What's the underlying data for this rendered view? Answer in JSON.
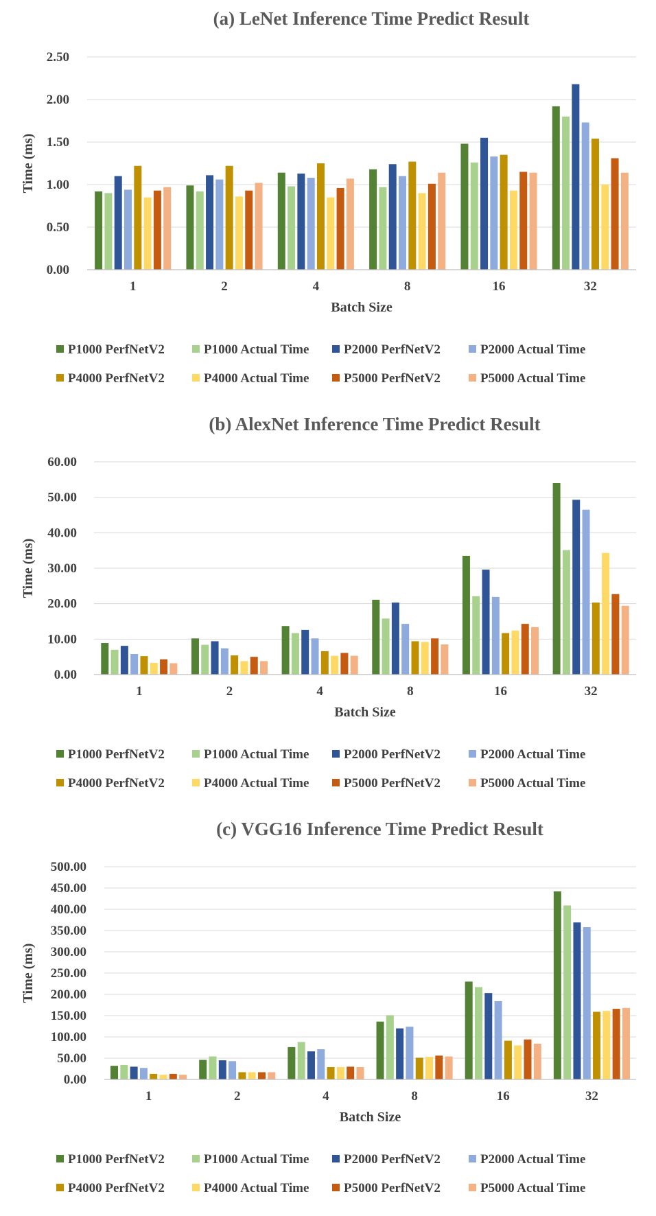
{
  "chart_data": [
    {
      "type": "bar",
      "title": "(a) LeNet Inference Time Predict Result",
      "xlabel": "Batch Size",
      "ylabel": "Time (ms)",
      "ylim": [
        0,
        2.5
      ],
      "yticks": [
        "0.00",
        "0.50",
        "1.00",
        "1.50",
        "2.00",
        "2.50"
      ],
      "ytick_values": [
        0,
        0.5,
        1.0,
        1.5,
        2.0,
        2.5
      ],
      "categories": [
        "1",
        "2",
        "4",
        "8",
        "16",
        "32"
      ],
      "series": [
        {
          "name": "P1000 PerfNetV2",
          "color": "#548235",
          "values": [
            0.92,
            0.99,
            1.14,
            1.18,
            1.48,
            1.92
          ]
        },
        {
          "name": "P1000 Actual Time",
          "color": "#a9d18e",
          "values": [
            0.9,
            0.92,
            0.98,
            0.97,
            1.26,
            1.8
          ]
        },
        {
          "name": "P2000 PerfNetV2",
          "color": "#2f5597",
          "values": [
            1.1,
            1.11,
            1.13,
            1.24,
            1.55,
            2.18
          ]
        },
        {
          "name": "P2000 Actual Time",
          "color": "#8faadc",
          "values": [
            0.94,
            1.06,
            1.08,
            1.1,
            1.33,
            1.73
          ]
        },
        {
          "name": "P4000 PerfNetV2",
          "color": "#bf9000",
          "values": [
            1.22,
            1.22,
            1.25,
            1.27,
            1.35,
            1.54
          ]
        },
        {
          "name": "P4000 Actual Time",
          "color": "#ffd966",
          "values": [
            0.85,
            0.86,
            0.85,
            0.9,
            0.93,
            1.0
          ]
        },
        {
          "name": "P5000 PerfNetV2",
          "color": "#c55a11",
          "values": [
            0.93,
            0.93,
            0.96,
            1.01,
            1.15,
            1.31
          ]
        },
        {
          "name": "P5000 Actual Time",
          "color": "#f4b183",
          "values": [
            0.97,
            1.02,
            1.07,
            1.14,
            1.14,
            1.14
          ]
        }
      ]
    },
    {
      "type": "bar",
      "title": "(b) AlexNet Inference Time Predict Result",
      "xlabel": "Batch Size",
      "ylabel": "Time (ms)",
      "ylim": [
        0,
        60
      ],
      "yticks": [
        "0.00",
        "10.00",
        "20.00",
        "30.00",
        "40.00",
        "50.00",
        "60.00"
      ],
      "ytick_values": [
        0,
        10,
        20,
        30,
        40,
        50,
        60
      ],
      "categories": [
        "1",
        "2",
        "4",
        "8",
        "16",
        "32"
      ],
      "series": [
        {
          "name": "P1000 PerfNetV2",
          "color": "#548235",
          "values": [
            8.9,
            10.2,
            13.7,
            21.1,
            33.5,
            54.0
          ]
        },
        {
          "name": "P1000 Actual Time",
          "color": "#a9d18e",
          "values": [
            7.0,
            8.4,
            11.7,
            15.8,
            22.1,
            35.1
          ]
        },
        {
          "name": "P2000 PerfNetV2",
          "color": "#2f5597",
          "values": [
            8.1,
            9.4,
            12.6,
            20.3,
            29.6,
            49.3
          ]
        },
        {
          "name": "P2000 Actual Time",
          "color": "#8faadc",
          "values": [
            5.8,
            7.4,
            10.2,
            14.3,
            21.9,
            46.5
          ]
        },
        {
          "name": "P4000 PerfNetV2",
          "color": "#bf9000",
          "values": [
            5.2,
            5.4,
            6.6,
            9.4,
            11.7,
            20.3
          ]
        },
        {
          "name": "P4000 Actual Time",
          "color": "#ffd966",
          "values": [
            3.3,
            3.8,
            5.3,
            9.2,
            12.4,
            34.3
          ]
        },
        {
          "name": "P5000 PerfNetV2",
          "color": "#c55a11",
          "values": [
            4.3,
            5.0,
            6.1,
            10.2,
            14.3,
            22.7
          ]
        },
        {
          "name": "P5000 Actual Time",
          "color": "#f4b183",
          "values": [
            3.2,
            3.8,
            5.3,
            8.5,
            13.4,
            19.4
          ]
        }
      ]
    },
    {
      "type": "bar",
      "title": "(c) VGG16 Inference Time Predict Result",
      "xlabel": "Batch Size",
      "ylabel": "Time (ms)",
      "ylim": [
        0,
        500
      ],
      "yticks": [
        "0.00",
        "50.00",
        "100.00",
        "150.00",
        "200.00",
        "250.00",
        "300.00",
        "350.00",
        "400.00",
        "450.00",
        "500.00"
      ],
      "ytick_values": [
        0,
        50,
        100,
        150,
        200,
        250,
        300,
        350,
        400,
        450,
        500
      ],
      "categories": [
        "1",
        "2",
        "4",
        "8",
        "16",
        "32"
      ],
      "series": [
        {
          "name": "P1000 PerfNetV2",
          "color": "#548235",
          "values": [
            32,
            46,
            76,
            136,
            230,
            442
          ]
        },
        {
          "name": "P1000 Actual Time",
          "color": "#a9d18e",
          "values": [
            34,
            54,
            88,
            151,
            217,
            409
          ]
        },
        {
          "name": "P2000 PerfNetV2",
          "color": "#2f5597",
          "values": [
            30,
            45,
            66,
            120,
            203,
            369
          ]
        },
        {
          "name": "P2000 Actual Time",
          "color": "#8faadc",
          "values": [
            27,
            43,
            71,
            124,
            184,
            358
          ]
        },
        {
          "name": "P4000 PerfNetV2",
          "color": "#bf9000",
          "values": [
            13,
            17,
            29,
            51,
            91,
            159
          ]
        },
        {
          "name": "P4000 Actual Time",
          "color": "#ffd966",
          "values": [
            11,
            17,
            29,
            53,
            80,
            161
          ]
        },
        {
          "name": "P5000 PerfNetV2",
          "color": "#c55a11",
          "values": [
            13,
            17,
            30,
            56,
            94,
            166
          ]
        },
        {
          "name": "P5000 Actual Time",
          "color": "#f4b183",
          "values": [
            11,
            17,
            29,
            54,
            84,
            168
          ]
        }
      ]
    }
  ]
}
